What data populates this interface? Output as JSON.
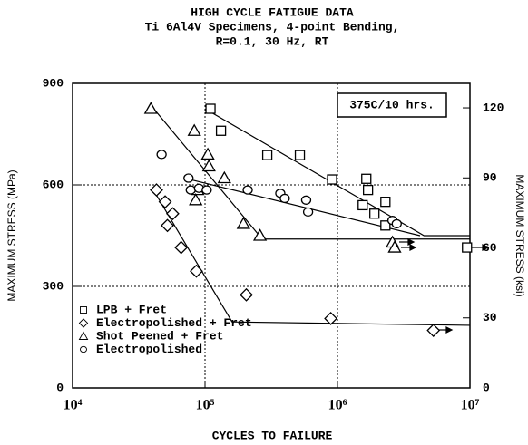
{
  "chart_data": {
    "type": "scatter",
    "title": [
      "HIGH CYCLE FATIGUE DATA",
      "Ti 6Al4V Specimens, 4-point Bending,",
      "R=0.1, 30 Hz, RT"
    ],
    "xlabel": "CYCLES TO FAILURE",
    "ylabel": "MAXIMUM STRESS (MPa)",
    "y2label": "MAXIMUM STRESS (ksi)",
    "annotation": "375C/10 hrs.",
    "xscale": "log",
    "xlim": [
      10000,
      10000000
    ],
    "xticks": [
      {
        "value": 10000,
        "label": "10⁴"
      },
      {
        "value": 100000,
        "label": "10⁵"
      },
      {
        "value": 1000000,
        "label": "10⁶"
      },
      {
        "value": 10000000,
        "label": "10⁷"
      }
    ],
    "ylim": [
      0,
      900
    ],
    "yticks": [
      0,
      300,
      600,
      900
    ],
    "y2lim": [
      0,
      130.5
    ],
    "y2ticks": [
      0,
      30,
      60,
      90,
      120
    ],
    "grid": true,
    "legend": "lower left",
    "series": [
      {
        "name": "LPB + Fret",
        "marker": "square",
        "color": "#000000",
        "x": [
          110000,
          132000,
          295000,
          520000,
          910000,
          1650000,
          1700000,
          1550000,
          1900000,
          2300000,
          2300000,
          9500000
        ],
        "values": [
          825,
          760,
          688,
          688,
          616,
          618,
          585,
          540,
          515,
          550,
          480,
          415
        ]
      },
      {
        "name": "Electropolished + Fret",
        "marker": "diamond",
        "color": "#000000",
        "x": [
          43000,
          50000,
          52000,
          57000,
          66000,
          86000,
          205000,
          890000,
          5300000
        ],
        "values": [
          585,
          550,
          480,
          515,
          415,
          345,
          275,
          205,
          170
        ]
      },
      {
        "name": "Shot Peened + Fret",
        "marker": "triangle",
        "color": "#000000",
        "x": [
          39000,
          83000,
          105000,
          107000,
          88000,
          85000,
          140000,
          195000,
          260000,
          2600000,
          2700000
        ],
        "values": [
          825,
          760,
          690,
          655,
          585,
          555,
          620,
          485,
          450,
          430,
          415
        ]
      },
      {
        "name": "Electropolished",
        "marker": "circle",
        "color": "#000000",
        "x": [
          47000,
          75000,
          78000,
          90000,
          103000,
          210000,
          370000,
          400000,
          580000,
          600000,
          2600000,
          2800000
        ],
        "values": [
          690,
          620,
          585,
          590,
          585,
          585,
          575,
          560,
          555,
          520,
          495,
          485
        ]
      }
    ],
    "fits": [
      {
        "x": [
          105000,
          4500000,
          10000000
        ],
        "values": [
          820,
          450,
          450
        ]
      },
      {
        "x": [
          40000,
          160000,
          10000000
        ],
        "values": [
          590,
          195,
          185
        ]
      },
      {
        "x": [
          40000,
          270000,
          10000000
        ],
        "values": [
          830,
          440,
          440
        ]
      },
      {
        "x": [
          70000,
          4200000
        ],
        "values": [
          620,
          450
        ]
      }
    ]
  }
}
